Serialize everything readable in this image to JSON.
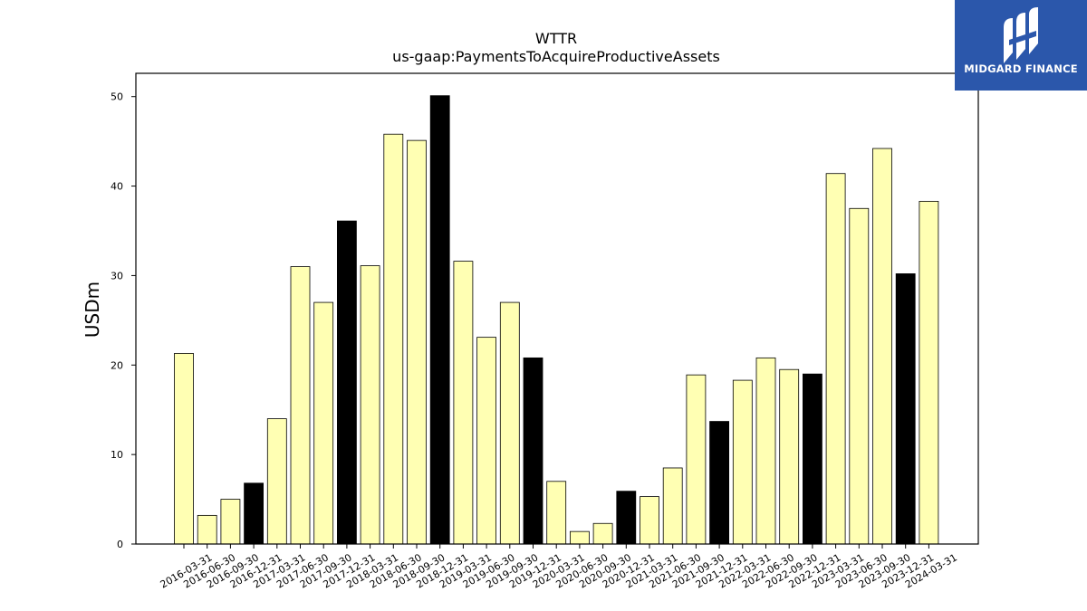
{
  "chart_data": {
    "type": "bar",
    "title": "WTTR",
    "subtitle": "us-gaap:PaymentsToAcquireProductiveAssets",
    "xlabel": "",
    "ylabel": "USDm",
    "ylim": [
      0,
      52.6
    ],
    "yticks": [
      0,
      10,
      20,
      30,
      40,
      50
    ],
    "grid": false,
    "colors": {
      "quarter": "#ffffb3",
      "year_end": "#000000",
      "edge": "#000000"
    },
    "categories": [
      "2016-03-31",
      "2016-06-30",
      "2016-09-30",
      "2016-12-31",
      "2017-03-31",
      "2017-06-30",
      "2017-09-30",
      "2017-12-31",
      "2018-03-31",
      "2018-06-30",
      "2018-09-30",
      "2018-12-31",
      "2019-03-31",
      "2019-06-30",
      "2019-09-30",
      "2019-12-31",
      "2020-03-31",
      "2020-06-30",
      "2020-09-30",
      "2020-12-31",
      "2021-03-31",
      "2021-06-30",
      "2021-09-30",
      "2021-12-31",
      "2022-03-31",
      "2022-06-30",
      "2022-09-30",
      "2022-12-31",
      "2023-03-31",
      "2023-06-30",
      "2023-09-30",
      "2023-12-31",
      "2024-03-31"
    ],
    "values": [
      21.3,
      3.2,
      5.0,
      6.8,
      14.0,
      31.0,
      27.0,
      36.1,
      31.1,
      45.8,
      45.1,
      50.1,
      31.6,
      23.1,
      27.0,
      20.8,
      7.0,
      1.4,
      2.3,
      5.9,
      5.3,
      8.5,
      18.9,
      13.7,
      18.3,
      20.8,
      19.5,
      19.0,
      41.4,
      37.5,
      44.2,
      30.2,
      38.3
    ]
  },
  "logo": {
    "text": "MIDGARD FINANCE"
  }
}
